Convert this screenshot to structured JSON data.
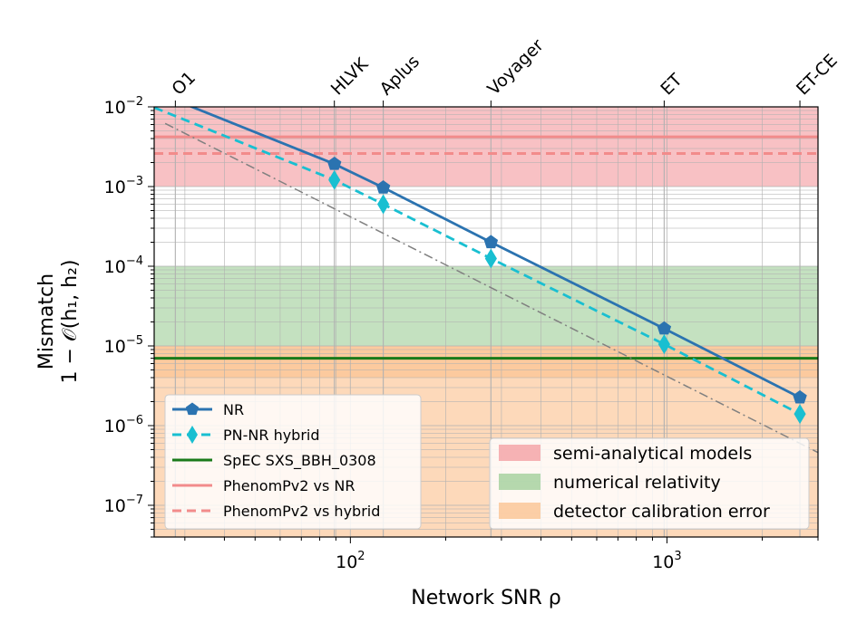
{
  "chart_data": {
    "type": "line",
    "xscale": "log",
    "yscale": "log",
    "xlim": [
      24,
      3000
    ],
    "ylim": [
      4e-08,
      0.01
    ],
    "xlabel": "Network SNR ρ",
    "ylabel_line1": "Mismatch",
    "ylabel_line2": "1 − 𝒪(h₁, h₂)",
    "x_tick_labels": [
      {
        "value": 100,
        "base": "10",
        "exp": "2"
      },
      {
        "value": 1000,
        "base": "10",
        "exp": "3"
      }
    ],
    "y_tick_labels": [
      {
        "value": 1e-07,
        "base": "10",
        "exp": "−7"
      },
      {
        "value": 1e-06,
        "base": "10",
        "exp": "−6"
      },
      {
        "value": 1e-05,
        "base": "10",
        "exp": "−5"
      },
      {
        "value": 0.0001,
        "base": "10",
        "exp": "−4"
      },
      {
        "value": 0.001,
        "base": "10",
        "exp": "−3"
      },
      {
        "value": 0.01,
        "base": "10",
        "exp": "−2"
      }
    ],
    "top_axis_ticks": [
      {
        "label": "O1",
        "x": 28
      },
      {
        "label": "HLVK",
        "x": 89
      },
      {
        "label": "Aplus",
        "x": 127
      },
      {
        "label": "Voyager",
        "x": 278
      },
      {
        "label": "ET",
        "x": 980
      },
      {
        "label": "ET-CE",
        "x": 2630
      }
    ],
    "bands": [
      {
        "name": "semi-analytical models",
        "ymin": 0.001,
        "ymax": 0.01,
        "color": "#f4a0a4",
        "opacity": 0.65
      },
      {
        "name": "numerical relativity",
        "ymin": 1e-05,
        "ymax": 0.0001,
        "color": "#9ccd96",
        "opacity": 0.6
      },
      {
        "name": "detector calibration error",
        "ymin": 4e-08,
        "ymax": 1e-05,
        "color": "#fbc08c",
        "opacity": 0.6
      },
      {
        "name": "",
        "ymin": 4e-06,
        "ymax": 1e-05,
        "color": "#fbc08c",
        "opacity": 0.6
      }
    ],
    "series": [
      {
        "name": "NR",
        "color": "#2b73b0",
        "dash": "",
        "marker": "pentagon",
        "x": [
          24,
          89,
          127,
          278,
          980,
          2630
        ],
        "y": [
          0.0155,
          0.00192,
          0.00097,
          0.0002,
          1.65e-05,
          2.25e-06
        ]
      },
      {
        "name": "PN-NR hybrid",
        "color": "#19bfd1",
        "dash": "10,6",
        "marker": "diamond",
        "x": [
          24,
          89,
          127,
          278,
          980,
          2630
        ],
        "y": [
          0.0098,
          0.00121,
          0.0006,
          0.000125,
          1.05e-05,
          1.4e-06
        ]
      },
      {
        "name": "SpEC SXS_BBH_0308",
        "color": "#1a7a1a",
        "dash": "",
        "marker": "none",
        "x": [
          24,
          3000
        ],
        "y": [
          7e-06,
          7e-06
        ]
      },
      {
        "name": "PhenomPv2 vs NR",
        "color": "#f28b8b",
        "dash": "",
        "marker": "none",
        "x": [
          24,
          3000
        ],
        "y": [
          0.0042,
          0.0042
        ]
      },
      {
        "name": "PhenomPv2 vs hybrid",
        "color": "#f28b8b",
        "dash": "10,6",
        "marker": "none",
        "x": [
          24,
          3000
        ],
        "y": [
          0.0026,
          0.0026
        ]
      }
    ],
    "reference_line": {
      "color": "#808080",
      "dash": "10,4,2,4",
      "x": [
        26,
        3000
      ],
      "y": [
        0.0062,
        4.6e-07
      ]
    },
    "legend_left": {
      "placement": "lower-left",
      "entries": [
        "NR",
        "PN-NR hybrid",
        "SpEC SXS_BBH_0308",
        "PhenomPv2 vs NR",
        "PhenomPv2 vs hybrid"
      ]
    },
    "legend_right": {
      "placement": "lower-right",
      "entries": [
        "semi-analytical models",
        "numerical relativity",
        "detector calibration error"
      ]
    },
    "grid": true
  }
}
